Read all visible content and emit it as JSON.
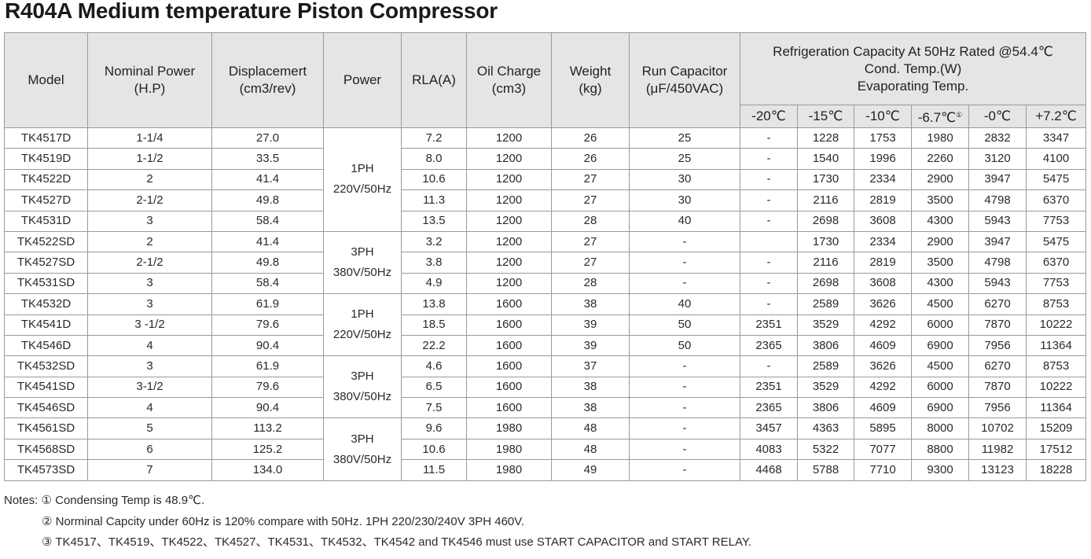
{
  "title": "R404A Medium temperature Piston Compressor",
  "headers": {
    "model": "Model",
    "nominal_power": [
      "Nominal Power",
      "(H.P)"
    ],
    "displacement": [
      "Displacemert",
      "(cm3/rev)"
    ],
    "power": "Power",
    "rla": "RLA(A)",
    "oil_charge": [
      "Oil Charge",
      "(cm3)"
    ],
    "weight": [
      "Weight",
      "(kg)"
    ],
    "run_capacitor": [
      "Run Capacitor",
      "(μF/450VAC)"
    ],
    "capacity": [
      "Refrigeration Capacity At 50Hz Rated @54.4℃",
      "Cond. Temp.(W)",
      "Evaporating Temp."
    ],
    "evap_temps": [
      "-20℃",
      "-15℃",
      "-10℃",
      "-6.7℃",
      "-0℃",
      "+7.2℃"
    ],
    "evap_marker": "①"
  },
  "power_groups": [
    {
      "line1": "1PH",
      "line2": "220V/50Hz"
    },
    {
      "line1": "3PH",
      "line2": "380V/50Hz"
    },
    {
      "line1": "1PH",
      "line2": "220V/50Hz"
    },
    {
      "line1": "3PH",
      "line2": "380V/50Hz"
    },
    {
      "line1": "3PH",
      "line2": "380V/50Hz"
    }
  ],
  "rows": [
    {
      "model": "TK4517D",
      "hp": "1-1/4",
      "disp": "27.0",
      "rla": "7.2",
      "oil": "1200",
      "weight": "26",
      "cap": "25",
      "c": [
        "-",
        "1228",
        "1753",
        "1980",
        "2832",
        "3347"
      ]
    },
    {
      "model": "TK4519D",
      "hp": "1-1/2",
      "disp": "33.5",
      "rla": "8.0",
      "oil": "1200",
      "weight": "26",
      "cap": "25",
      "c": [
        "-",
        "1540",
        "1996",
        "2260",
        "3120",
        "4100"
      ]
    },
    {
      "model": "TK4522D",
      "hp": "2",
      "disp": "41.4",
      "rla": "10.6",
      "oil": "1200",
      "weight": "27",
      "cap": "30",
      "c": [
        "-",
        "1730",
        "2334",
        "2900",
        "3947",
        "5475"
      ]
    },
    {
      "model": "TK4527D",
      "hp": "2-1/2",
      "disp": "49.8",
      "rla": "11.3",
      "oil": "1200",
      "weight": "27",
      "cap": "30",
      "c": [
        "-",
        "2116",
        "2819",
        "3500",
        "4798",
        "6370"
      ]
    },
    {
      "model": "TK4531D",
      "hp": "3",
      "disp": "58.4",
      "rla": "13.5",
      "oil": "1200",
      "weight": "28",
      "cap": "40",
      "c": [
        "-",
        "2698",
        "3608",
        "4300",
        "5943",
        "7753"
      ]
    },
    {
      "model": "TK4522SD",
      "hp": "2",
      "disp": "41.4",
      "rla": "3.2",
      "oil": "1200",
      "weight": "27",
      "cap": "-",
      "c": [
        "",
        "1730",
        "2334",
        "2900",
        "3947",
        "5475"
      ]
    },
    {
      "model": "TK4527SD",
      "hp": "2-1/2",
      "disp": "49.8",
      "rla": "3.8",
      "oil": "1200",
      "weight": "27",
      "cap": "-",
      "c": [
        "-",
        "2116",
        "2819",
        "3500",
        "4798",
        "6370"
      ]
    },
    {
      "model": "TK4531SD",
      "hp": "3",
      "disp": "58.4",
      "rla": "4.9",
      "oil": "1200",
      "weight": "28",
      "cap": "-",
      "c": [
        "-",
        "2698",
        "3608",
        "4300",
        "5943",
        "7753"
      ]
    },
    {
      "model": "TK4532D",
      "hp": "3",
      "disp": "61.9",
      "rla": "13.8",
      "oil": "1600",
      "weight": "38",
      "cap": "40",
      "c": [
        "-",
        "2589",
        "3626",
        "4500",
        "6270",
        "8753"
      ]
    },
    {
      "model": "TK4541D",
      "hp": "3 -1/2",
      "disp": "79.6",
      "rla": "18.5",
      "oil": "1600",
      "weight": "39",
      "cap": "50",
      "c": [
        "2351",
        "3529",
        "4292",
        "6000",
        "7870",
        "10222"
      ]
    },
    {
      "model": "TK4546D",
      "hp": "4",
      "disp": "90.4",
      "rla": "22.2",
      "oil": "1600",
      "weight": "39",
      "cap": "50",
      "c": [
        "2365",
        "3806",
        "4609",
        "6900",
        "7956",
        "11364"
      ]
    },
    {
      "model": "TK4532SD",
      "hp": "3",
      "disp": "61.9",
      "rla": "4.6",
      "oil": "1600",
      "weight": "37",
      "cap": "-",
      "c": [
        "-",
        "2589",
        "3626",
        "4500",
        "6270",
        "8753"
      ]
    },
    {
      "model": "TK4541SD",
      "hp": "3-1/2",
      "disp": "79.6",
      "rla": "6.5",
      "oil": "1600",
      "weight": "38",
      "cap": "-",
      "c": [
        "2351",
        "3529",
        "4292",
        "6000",
        "7870",
        "10222"
      ]
    },
    {
      "model": "TK4546SD",
      "hp": "4",
      "disp": "90.4",
      "rla": "7.5",
      "oil": "1600",
      "weight": "38",
      "cap": "-",
      "c": [
        "2365",
        "3806",
        "4609",
        "6900",
        "7956",
        "11364"
      ]
    },
    {
      "model": "TK4561SD",
      "hp": "5",
      "disp": "113.2",
      "rla": "9.6",
      "oil": "1980",
      "weight": "48",
      "cap": "-",
      "c": [
        "3457",
        "4363",
        "5895",
        "8000",
        "10702",
        "15209"
      ]
    },
    {
      "model": "TK4568SD",
      "hp": "6",
      "disp": "125.2",
      "rla": "10.6",
      "oil": "1980",
      "weight": "48",
      "cap": "-",
      "c": [
        "4083",
        "5322",
        "7077",
        "8800",
        "11982",
        "17512"
      ]
    },
    {
      "model": "TK4573SD",
      "hp": "7",
      "disp": "134.0",
      "rla": "11.5",
      "oil": "1980",
      "weight": "49",
      "cap": "-",
      "c": [
        "4468",
        "5788",
        "7710",
        "9300",
        "13123",
        "18228"
      ]
    }
  ],
  "notes": [
    "Notes: ① Condensing Temp is 48.9℃.",
    "② Norminal Capcity under 60Hz is 120% compare with 50Hz. 1PH 220/230/240V 3PH 460V.",
    "③ TK4517、TK4519、TK4522、TK4527、TK4531、TK4532、TK4542 and TK4546 must use START CAPACITOR and START RELAY."
  ]
}
